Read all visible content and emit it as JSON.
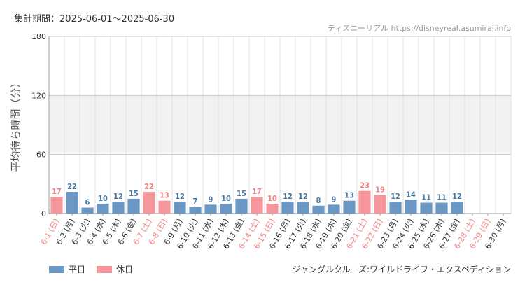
{
  "header": {
    "period": "集計期間：2025-06-01～2025-06-30",
    "credit": "ディズニーリアル https://disneyreal.asumirai.info"
  },
  "footer": {
    "attraction": "ジャングルクルーズ:ワイルドライフ・エクスペディション"
  },
  "legend": {
    "weekday": "平日",
    "holiday": "休日"
  },
  "colors": {
    "weekday": "#6a97c3",
    "holiday": "#f4969b",
    "weekday_label": "#4a7aa8",
    "holiday_label": "#f08080",
    "band": "#f2f2f2",
    "grid": "#e0e0e0"
  },
  "chart_data": {
    "type": "bar",
    "ylabel": "平均待ち時間（分）",
    "ylim": [
      0,
      180
    ],
    "yticks": [
      0,
      60,
      120,
      180
    ],
    "shaded_band": [
      60,
      120
    ],
    "categories": [
      "6-1 (日)",
      "6-2 (月)",
      "6-3 (火)",
      "6-4 (水)",
      "6-5 (木)",
      "6-6 (金)",
      "6-7 (土)",
      "6-8 (日)",
      "6-9 (月)",
      "6-10 (火)",
      "6-11 (水)",
      "6-12 (木)",
      "6-13 (金)",
      "6-14 (土)",
      "6-15 (日)",
      "6-16 (月)",
      "6-17 (火)",
      "6-18 (水)",
      "6-19 (木)",
      "6-20 (金)",
      "6-21 (土)",
      "6-22 (日)",
      "6-23 (月)",
      "6-24 (火)",
      "6-25 (水)",
      "6-26 (木)",
      "6-27 (金)",
      "6-28 (土)",
      "6-29 (日)",
      "6-30 (月)"
    ],
    "values": [
      17,
      22,
      6,
      10,
      12,
      15,
      22,
      13,
      12,
      7,
      9,
      10,
      15,
      17,
      10,
      12,
      12,
      8,
      9,
      13,
      23,
      19,
      12,
      14,
      11,
      11,
      12,
      null,
      null,
      null
    ],
    "day_type": [
      "holiday",
      "weekday",
      "weekday",
      "weekday",
      "weekday",
      "weekday",
      "holiday",
      "holiday",
      "weekday",
      "weekday",
      "weekday",
      "weekday",
      "weekday",
      "holiday",
      "holiday",
      "weekday",
      "weekday",
      "weekday",
      "weekday",
      "weekday",
      "holiday",
      "holiday",
      "weekday",
      "weekday",
      "weekday",
      "weekday",
      "weekday",
      "holiday",
      "holiday",
      "weekday"
    ],
    "legend_position": "bottom-left"
  }
}
